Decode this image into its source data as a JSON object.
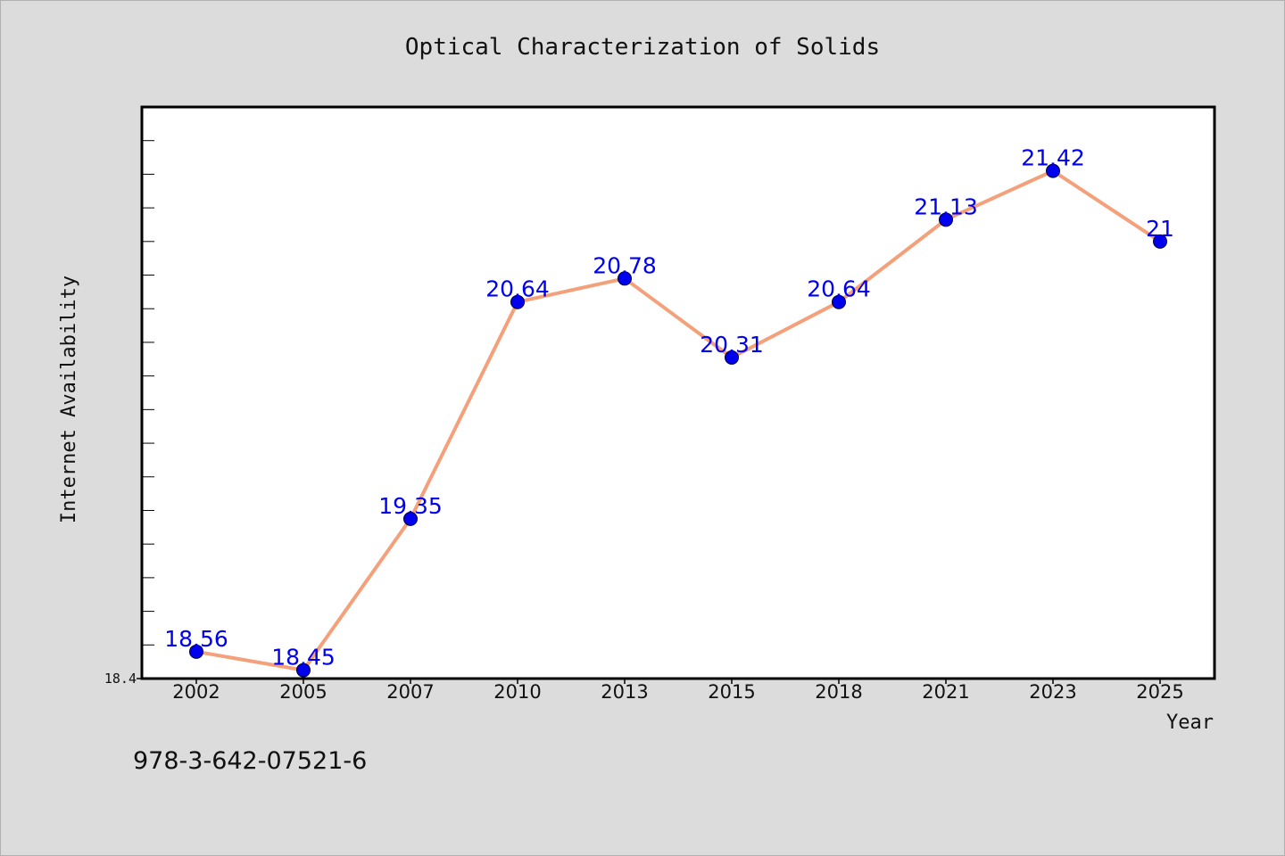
{
  "chart_data": {
    "type": "line",
    "title": "Optical Characterization of Solids",
    "xlabel": "Year",
    "ylabel": "Internet Availability",
    "categories": [
      "2002",
      "2005",
      "2007",
      "2010",
      "2013",
      "2015",
      "2018",
      "2021",
      "2023",
      "2025"
    ],
    "series": [
      {
        "values": [
          18.56,
          18.45,
          19.35,
          20.64,
          20.78,
          20.31,
          20.64,
          21.13,
          21.42,
          21
        ],
        "labels": [
          "18.56",
          "18.45",
          "19.35",
          "20.64",
          "20.78",
          "20.31",
          "20.64",
          "21.13",
          "21.42",
          "21"
        ],
        "line_color": "#f4a07a",
        "marker_color": "#0000ee",
        "label_color": "#0000ee"
      }
    ],
    "ylim": [
      18.4,
      21.8
    ],
    "yticks": [
      {
        "value": 18.4,
        "label": "18.4"
      }
    ],
    "minor_tick_step": 0.2,
    "grid": false,
    "legend": "none"
  },
  "footer": {
    "identifier": "978-3-642-07521-6"
  },
  "colors": {
    "background": "#dcdcdc",
    "plot_area": "#ffffff",
    "frame": "#000000"
  }
}
